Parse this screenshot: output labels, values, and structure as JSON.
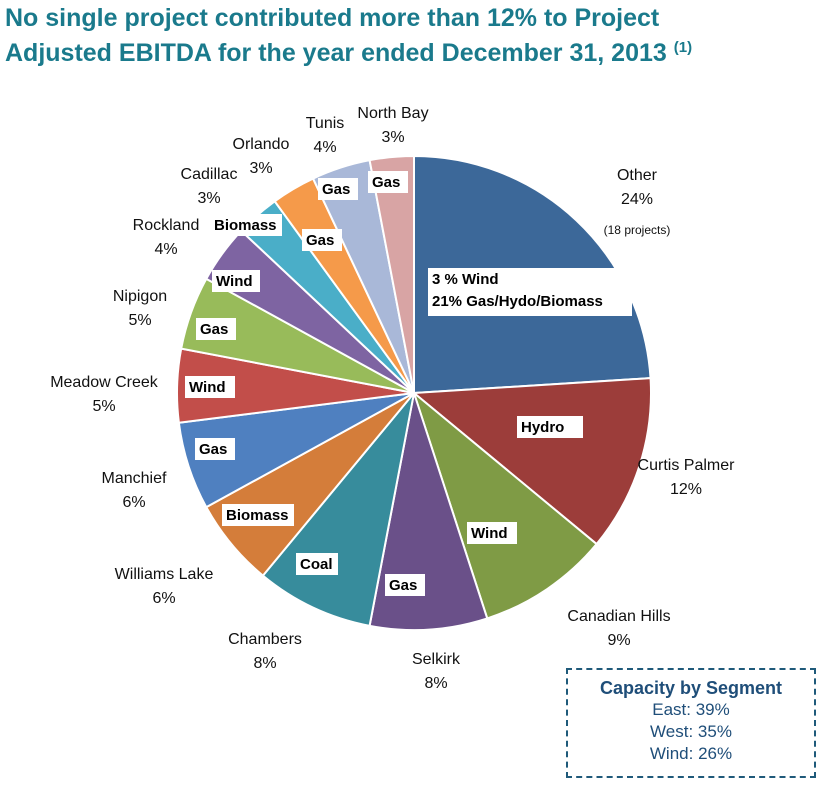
{
  "title": {
    "line1": "No single project contributed more than 12% to Project",
    "line2": "Adjusted EBITDA for the year ended December 31, 2013",
    "footnote": "(1)"
  },
  "capacity_box": {
    "title": "Capacity by Segment",
    "items": [
      "East: 39%",
      "West: 35%",
      "Wind: 26%"
    ]
  },
  "chart_data": {
    "type": "pie",
    "start": "12 o'clock",
    "direction": "clockwise",
    "slices": [
      {
        "label": "Other",
        "value": 24,
        "pct_label": "24%",
        "note": "(18 projects)",
        "tag": [
          "3 % Wind",
          "21% Gas/Hydo/Biomass"
        ],
        "color": "#3c6899"
      },
      {
        "label": "Curtis Palmer",
        "value": 12,
        "pct_label": "12%",
        "tag": [
          "Hydro"
        ],
        "color": "#9c3d3a"
      },
      {
        "label": "Canadian Hills",
        "value": 9,
        "pct_label": "9%",
        "tag": [
          "Wind"
        ],
        "color": "#7f9b45"
      },
      {
        "label": "Selkirk",
        "value": 8,
        "pct_label": "8%",
        "tag": [
          "Gas"
        ],
        "color": "#6a5089"
      },
      {
        "label": "Chambers",
        "value": 8,
        "pct_label": "8%",
        "tag": [
          "Coal"
        ],
        "color": "#378c9c"
      },
      {
        "label": "Williams Lake",
        "value": 6,
        "pct_label": "6%",
        "tag": [
          "Biomass"
        ],
        "color": "#d47d3a"
      },
      {
        "label": "Manchief",
        "value": 6,
        "pct_label": "6%",
        "tag": [
          "Gas"
        ],
        "color": "#4f80c0"
      },
      {
        "label": "Meadow Creek",
        "value": 5,
        "pct_label": "5%",
        "tag": [
          "Wind"
        ],
        "color": "#c24e4a"
      },
      {
        "label": "Nipigon",
        "value": 5,
        "pct_label": "5%",
        "tag": [
          "Gas"
        ],
        "color": "#98bb5a"
      },
      {
        "label": "Rockland",
        "value": 4,
        "pct_label": "4%",
        "tag": [
          "Wind"
        ],
        "color": "#7e64a2"
      },
      {
        "label": "Cadillac",
        "value": 3,
        "pct_label": "3%",
        "tag": [
          "Biomass"
        ],
        "color": "#4aaec8"
      },
      {
        "label": "Orlando",
        "value": 3,
        "pct_label": "3%",
        "tag": [
          "Gas"
        ],
        "color": "#f59a4a"
      },
      {
        "label": "Tunis",
        "value": 4,
        "pct_label": "4%",
        "tag": [
          "Gas"
        ],
        "color": "#a9b8d8"
      },
      {
        "label": "North Bay",
        "value": 3,
        "pct_label": "3%",
        "tag": [
          "Gas"
        ],
        "color": "#d8a4a4"
      }
    ]
  }
}
